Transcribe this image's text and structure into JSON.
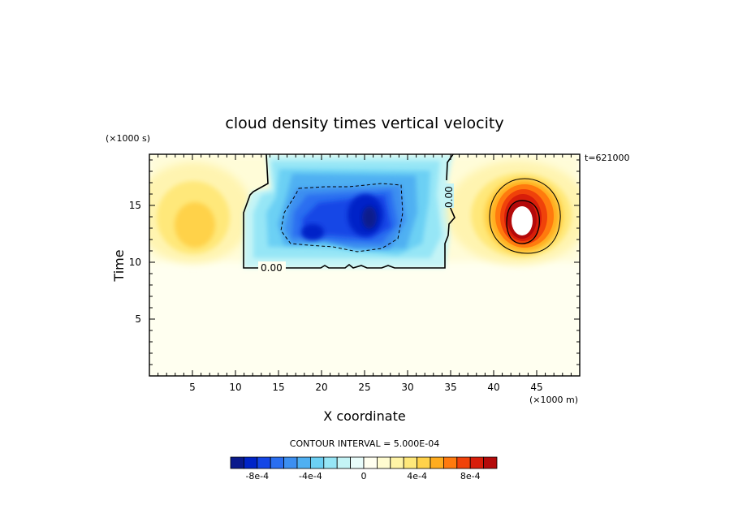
{
  "chart_data": {
    "type": "heatmap",
    "title": "cloud density times vertical velocity",
    "xlabel": "X coordinate",
    "ylabel": "Time",
    "x_unit": "(×1000 m)",
    "y_unit": "(×1000 s)",
    "annotation": "t=621000",
    "xlim": [
      0,
      50
    ],
    "ylim": [
      0,
      19.5
    ],
    "xticks": [
      5,
      10,
      15,
      20,
      25,
      30,
      35,
      40,
      45
    ],
    "yticks": [
      5,
      10,
      15
    ],
    "contour_label": "0.00",
    "contour_interval_text": "CONTOUR INTERVAL = 5.000E-04",
    "colorbar": {
      "ticks": [
        "-8e-4",
        "-4e-4",
        "0",
        "4e-4",
        "8e-4"
      ],
      "tick_values": [
        -0.0008,
        -0.0004,
        0,
        0.0004,
        0.0008
      ],
      "levels": [
        -0.001,
        -0.0009,
        -0.0008,
        -0.0007,
        -0.0006,
        -0.0005,
        -0.0004,
        -0.0003,
        -0.0002,
        -0.0001,
        0,
        0.0001,
        0.0002,
        0.0003,
        0.0004,
        0.0005,
        0.0006,
        0.0007,
        0.0008,
        0.0009,
        0.001
      ],
      "colors": [
        "#0a1a8c",
        "#0024c8",
        "#1446e6",
        "#2a6ef0",
        "#3c8ff0",
        "#4fb0f2",
        "#6cd0f4",
        "#96e6f6",
        "#c4f4f6",
        "#e8fcfa",
        "#fffff0",
        "#fffcd0",
        "#fff4a6",
        "#ffe87a",
        "#ffd24a",
        "#ffac1e",
        "#ff7a0e",
        "#f0420a",
        "#d81e0a",
        "#b40a0a"
      ]
    }
  }
}
